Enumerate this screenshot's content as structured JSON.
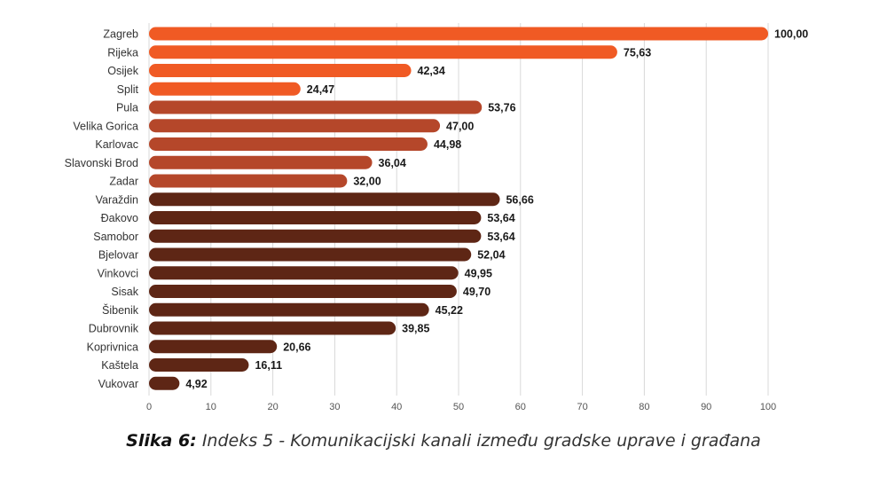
{
  "chart_data": {
    "type": "bar",
    "orientation": "horizontal",
    "categories": [
      "Zagreb",
      "Rijeka",
      "Osijek",
      "Split",
      "Pula",
      "Velika Gorica",
      "Karlovac",
      "Slavonski Brod",
      "Zadar",
      "Varaždin",
      "Đakovo",
      "Samobor",
      "Bjelovar",
      "Vinkovci",
      "Sisak",
      "Šibenik",
      "Dubrovnik",
      "Koprivnica",
      "Kaštela",
      "Vukovar"
    ],
    "values": [
      100.0,
      75.63,
      42.34,
      24.47,
      53.76,
      47.0,
      44.98,
      36.04,
      32.0,
      56.66,
      53.64,
      53.64,
      52.04,
      49.95,
      49.7,
      45.22,
      39.85,
      20.66,
      16.11,
      4.92
    ],
    "value_labels": [
      "100,00",
      "75,63",
      "42,34",
      "24,47",
      "53,76",
      "47,00",
      "44,98",
      "36,04",
      "32,00",
      "56,66",
      "53,64",
      "53,64",
      "52,04",
      "49,95",
      "49,70",
      "45,22",
      "39,85",
      "20,66",
      "16,11",
      "4,92"
    ],
    "groups": [
      0,
      0,
      0,
      0,
      1,
      1,
      1,
      1,
      1,
      2,
      2,
      2,
      2,
      2,
      2,
      2,
      2,
      2,
      2,
      2
    ],
    "group_colors": [
      "#f05a24",
      "#b5472a",
      "#5e2615"
    ],
    "xlim": [
      0,
      100
    ],
    "xticks": [
      0,
      10,
      20,
      30,
      40,
      50,
      60,
      70,
      80,
      90,
      100
    ],
    "grid": true,
    "title": "",
    "xlabel": "",
    "ylabel": ""
  },
  "caption": {
    "label": "Slika 6:",
    "text": "Indeks 5 - Komunikacijski kanali između gradske uprave i građana"
  }
}
